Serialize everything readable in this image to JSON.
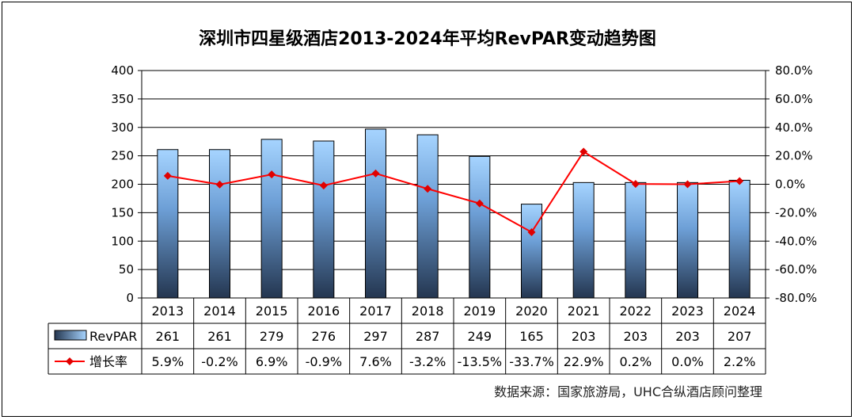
{
  "chart_data": {
    "type": "bar+line",
    "title": "深圳市四星级酒店2013-2024年平均RevPAR变动趋势图",
    "categories": [
      "2013",
      "2014",
      "2015",
      "2016",
      "2017",
      "2018",
      "2019",
      "2020",
      "2021",
      "2022",
      "2023",
      "2024"
    ],
    "series": [
      {
        "name": "RevPAR",
        "type": "bar",
        "axis": "left",
        "values": [
          261,
          261,
          279,
          276,
          297,
          287,
          249,
          165,
          203,
          203,
          203,
          207
        ],
        "labels": [
          "261",
          "261",
          "279",
          "276",
          "297",
          "287",
          "249",
          "165",
          "203",
          "203",
          "203",
          "207"
        ],
        "color_top": "#9fd0ff",
        "color_bottom": "#2b3f5a"
      },
      {
        "name": "增长率",
        "type": "line",
        "axis": "right",
        "values": [
          5.9,
          -0.2,
          6.9,
          -0.9,
          7.6,
          -3.2,
          -13.5,
          -33.7,
          22.9,
          0.2,
          0.0,
          2.2
        ],
        "labels": [
          "5.9%",
          "-0.2%",
          "6.9%",
          "-0.9%",
          "7.6%",
          "-3.2%",
          "-13.5%",
          "-33.7%",
          "22.9%",
          "0.2%",
          "0.0%",
          "2.2%"
        ],
        "color": "#ff0000",
        "marker_color": "#e00000"
      }
    ],
    "y_left": {
      "min": 0,
      "max": 400,
      "ticks": [
        "0",
        "50",
        "100",
        "150",
        "200",
        "250",
        "300",
        "350",
        "400"
      ]
    },
    "y_right": {
      "min": -80,
      "max": 80,
      "ticks": [
        "-80.0%",
        "-60.0%",
        "-40.0%",
        "-20.0%",
        "0.0%",
        "20.0%",
        "40.0%",
        "60.0%",
        "80.0%"
      ]
    },
    "grid": true,
    "legend": "data-table-left",
    "source": "数据来源：国家旅游局，UHC合纵酒店顾问整理"
  }
}
